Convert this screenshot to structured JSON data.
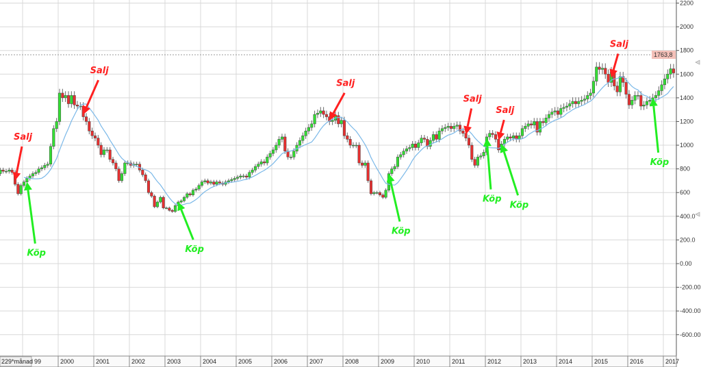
{
  "chart_data": {
    "type": "candlestick",
    "interval_label": "229*månad",
    "start": "1998-04",
    "closes": [
      760,
      790,
      780,
      780,
      790,
      770,
      670,
      590,
      660,
      690,
      720,
      740,
      760,
      770,
      800,
      810,
      830,
      840,
      990,
      1140,
      1200,
      1440,
      1400,
      1420,
      1350,
      1420,
      1340,
      1330,
      1330,
      1240,
      1200,
      1120,
      1080,
      1060,
      1000,
      920,
      960,
      960,
      880,
      850,
      800,
      700,
      760,
      850,
      850,
      830,
      840,
      840,
      790,
      750,
      700,
      600,
      570,
      480,
      520,
      560,
      470,
      470,
      450,
      440,
      490,
      520,
      530,
      560,
      590,
      580,
      620,
      630,
      660,
      690,
      700,
      680,
      690,
      670,
      690,
      680,
      670,
      690,
      700,
      710,
      720,
      730,
      740,
      740,
      730,
      770,
      790,
      820,
      840,
      860,
      850,
      900,
      930,
      960,
      1000,
      1050,
      1070,
      950,
      900,
      900,
      950,
      1000,
      1040,
      1080,
      1120,
      1150,
      1180,
      1260,
      1270,
      1290,
      1260,
      1240,
      1200,
      1210,
      1250,
      1180,
      1210,
      1080,
      1050,
      1000,
      1000,
      1000,
      850,
      830,
      850,
      700,
      590,
      600,
      600,
      580,
      560,
      620,
      760,
      800,
      820,
      900,
      920,
      950,
      970,
      980,
      1010,
      980,
      1020,
      1060,
      1050,
      990,
      1040,
      1090,
      1050,
      1120,
      1140,
      1150,
      1160,
      1140,
      1160,
      1170,
      1120,
      1100,
      1060,
      1000,
      880,
      830,
      900,
      910,
      940,
      1070,
      1100,
      1090,
      1050,
      960,
      1010,
      1050,
      1070,
      1060,
      1080,
      1050,
      1080,
      1140,
      1160,
      1180,
      1170,
      1200,
      1110,
      1200,
      1190,
      1230,
      1260,
      1280,
      1290,
      1260,
      1310,
      1320,
      1330,
      1350,
      1370,
      1350,
      1370,
      1380,
      1390,
      1420,
      1440,
      1540,
      1660,
      1640,
      1650,
      1600,
      1530,
      1620,
      1500,
      1450,
      1580,
      1530,
      1430,
      1340,
      1380,
      1420,
      1420,
      1330,
      1340,
      1370,
      1380,
      1400,
      1420,
      1460,
      1510,
      1560,
      1600,
      1645,
      1610
    ],
    "moving_average": {
      "period": 10,
      "color": "#7ab8e8"
    },
    "up_color": "#33e033",
    "down_color": "#e83030",
    "y_ticks": [
      "2200",
      "2000",
      "1800",
      "1600",
      "1400",
      "1200",
      "1000",
      "800",
      "600",
      "400.0",
      "200.0",
      "0.00",
      "-200.00",
      "-400.00",
      "-600.00"
    ],
    "y_tick_values": [
      2200,
      2000,
      1800,
      1600,
      1400,
      1200,
      1000,
      800,
      600,
      400,
      200,
      0,
      -200,
      -400,
      -600
    ],
    "ylim": [
      -700,
      2230
    ],
    "x_ticks": [
      "99",
      "2000",
      "2001",
      "2002",
      "2003",
      "2004",
      "2005",
      "2006",
      "2007",
      "2008",
      "2009",
      "2010",
      "2011",
      "2012",
      "2013",
      "2014",
      "2015",
      "2016",
      "2017"
    ],
    "last_price_label": "1763,8",
    "last_price_value": 1763.8,
    "grid": true,
    "annotations": [
      {
        "label": "Salj",
        "type": "sell",
        "date": "1998-10",
        "price": 700,
        "color": "#ff2020"
      },
      {
        "label": "Köp",
        "type": "buy",
        "date": "1999-02",
        "price": 690,
        "color": "#22ee22"
      },
      {
        "label": "Salj",
        "type": "sell",
        "date": "2000-09",
        "price": 1260,
        "color": "#ff2020"
      },
      {
        "label": "Köp",
        "type": "buy",
        "date": "2003-05",
        "price": 520,
        "color": "#22ee22"
      },
      {
        "label": "Salj",
        "type": "sell",
        "date": "2007-08",
        "price": 1210,
        "color": "#ff2020"
      },
      {
        "label": "Köp",
        "type": "buy",
        "date": "2009-04",
        "price": 760,
        "color": "#22ee22"
      },
      {
        "label": "Salj",
        "type": "sell",
        "date": "2011-06",
        "price": 1090,
        "color": "#ff2020"
      },
      {
        "label": "Köp",
        "type": "buy",
        "date": "2012-01",
        "price": 1060,
        "color": "#22ee22"
      },
      {
        "label": "Salj",
        "type": "sell",
        "date": "2012-05",
        "price": 1040,
        "color": "#ff2020"
      },
      {
        "label": "Köp",
        "type": "buy",
        "date": "2012-06",
        "price": 1010,
        "color": "#22ee22"
      },
      {
        "label": "Salj",
        "type": "sell",
        "date": "2015-07",
        "price": 1570,
        "color": "#ff2020"
      },
      {
        "label": "Köp",
        "type": "buy",
        "date": "2016-09",
        "price": 1400,
        "color": "#22ee22"
      }
    ]
  }
}
